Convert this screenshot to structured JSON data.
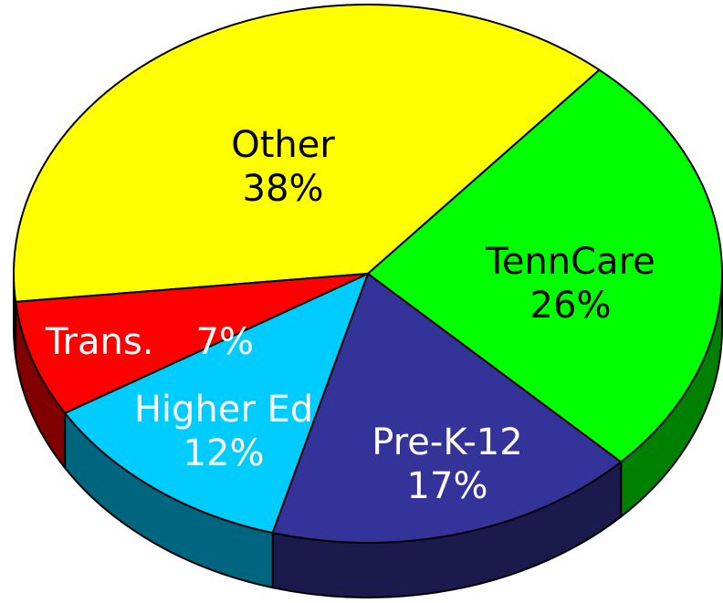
{
  "chart_data": {
    "type": "pie3d",
    "categories": [
      "Other",
      "TennCare",
      "Pre-K-12",
      "Higher Ed",
      "Trans."
    ],
    "values": [
      38,
      26,
      17,
      12,
      7
    ],
    "value_labels": [
      "38%",
      "26%",
      "17%",
      "12%",
      "7%"
    ],
    "colors": [
      "#ffff00",
      "#00ff00",
      "#333399",
      "#00ccff",
      "#ff0000"
    ]
  }
}
